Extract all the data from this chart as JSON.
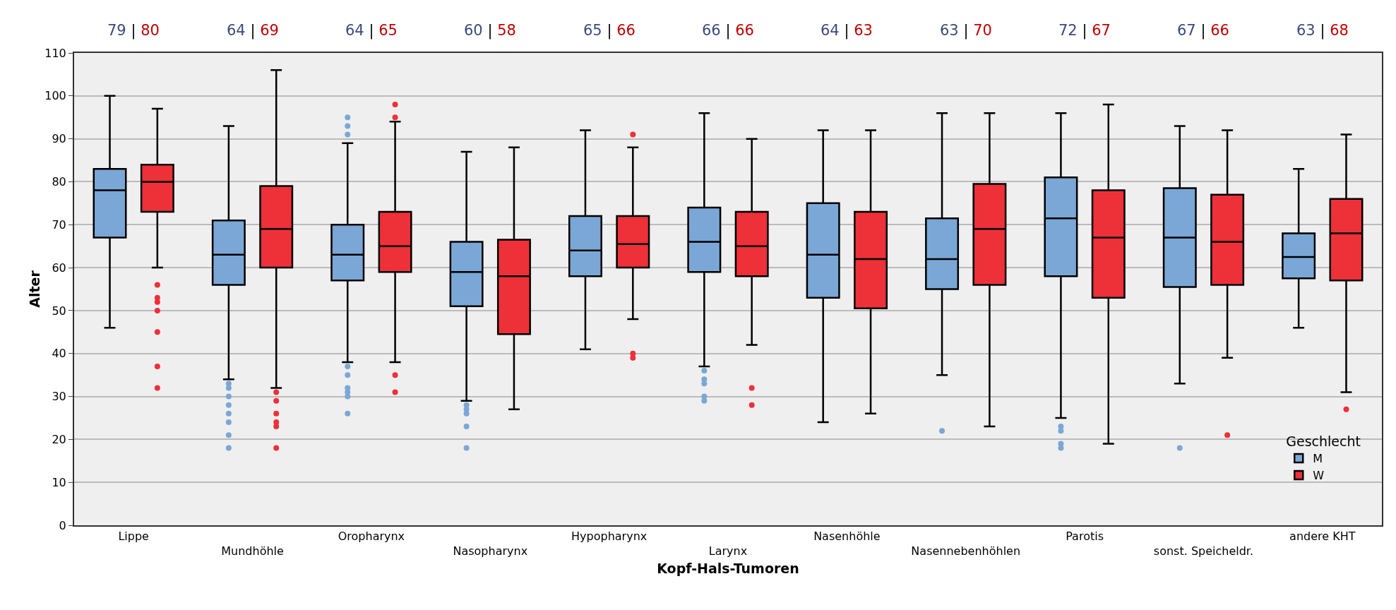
{
  "chart_data": {
    "type": "box",
    "xlabel": "Kopf-Hals-Tumoren",
    "ylabel": "Alter",
    "legend_title": "Geschlecht",
    "categories": [
      "Lippe",
      "Mundhöhle",
      "Oropharynx",
      "Nasopharynx",
      "Hypopharynx",
      "Larynx",
      "Nasenhöhle",
      "Nasennebenhöhlen",
      "Parotis",
      "sonst. Speicheldr.",
      "andere KHT"
    ],
    "annotations": [
      "79 | 80",
      "64 | 69",
      "64 | 65",
      "60 | 58",
      "65 | 66",
      "66 | 66",
      "64 | 63",
      "63 | 70",
      "72 | 67",
      "67 | 66",
      "63 | 68"
    ],
    "ylim": [
      0,
      110
    ],
    "yticks": [
      0,
      10,
      20,
      30,
      40,
      50,
      60,
      70,
      80,
      90,
      100,
      110
    ],
    "grid": "y",
    "legend": "bottom right",
    "series": [
      {
        "name": "M",
        "color": "#7aa7d6",
        "boxes": [
          {
            "low": 46,
            "q1": 67,
            "median": 78,
            "q3": 83,
            "high": 100
          },
          {
            "low": 34,
            "q1": 56,
            "median": 63,
            "q3": 71,
            "high": 93,
            "outliers": [
              33,
              32,
              30,
              28,
              26,
              24,
              21,
              18
            ]
          },
          {
            "low": 38,
            "q1": 57,
            "median": 63,
            "q3": 70,
            "high": 89,
            "outliers": [
              95,
              93,
              91,
              37,
              35,
              32,
              31,
              30,
              26
            ]
          },
          {
            "low": 29,
            "q1": 51,
            "median": 59,
            "q3": 66,
            "high": 87,
            "outliers": [
              28,
              27,
              26,
              23,
              18
            ]
          },
          {
            "low": 41,
            "q1": 58,
            "median": 64,
            "q3": 72,
            "high": 92
          },
          {
            "low": 37,
            "q1": 59,
            "median": 66,
            "q3": 74,
            "high": 96,
            "outliers": [
              36,
              34,
              33,
              30,
              29
            ]
          },
          {
            "low": 24,
            "q1": 53,
            "median": 63,
            "q3": 75,
            "high": 92
          },
          {
            "low": 35,
            "q1": 55,
            "median": 62,
            "q3": 71.5,
            "high": 96,
            "outliers": [
              22
            ]
          },
          {
            "low": 25,
            "q1": 58,
            "median": 71.5,
            "q3": 81,
            "high": 96,
            "outliers": [
              23,
              22,
              19,
              18
            ]
          },
          {
            "low": 33,
            "q1": 55.5,
            "median": 67,
            "q3": 78.5,
            "high": 93,
            "outliers": [
              18
            ]
          },
          {
            "low": 46,
            "q1": 57.5,
            "median": 62.5,
            "q3": 68,
            "high": 83
          }
        ]
      },
      {
        "name": "W",
        "color": "#ee3039",
        "boxes": [
          {
            "low": 60,
            "q1": 73,
            "median": 80,
            "q3": 84,
            "high": 97,
            "outliers": [
              56,
              53,
              52,
              50,
              45,
              37,
              32
            ]
          },
          {
            "low": 32,
            "q1": 60,
            "median": 69,
            "q3": 79,
            "high": 106,
            "outliers": [
              31,
              29,
              26,
              24,
              23,
              18
            ]
          },
          {
            "low": 38,
            "q1": 59,
            "median": 65,
            "q3": 73,
            "high": 94,
            "outliers": [
              98,
              95,
              35,
              31
            ]
          },
          {
            "low": 27,
            "q1": 44.5,
            "median": 58,
            "q3": 66.5,
            "high": 88
          },
          {
            "low": 48,
            "q1": 60,
            "median": 65.5,
            "q3": 72,
            "high": 88,
            "outliers": [
              91,
              40,
              39
            ]
          },
          {
            "low": 42,
            "q1": 58,
            "median": 65,
            "q3": 73,
            "high": 90,
            "outliers": [
              32,
              28
            ]
          },
          {
            "low": 26,
            "q1": 50.5,
            "median": 62,
            "q3": 73,
            "high": 92
          },
          {
            "low": 23,
            "q1": 56,
            "median": 69,
            "q3": 79.5,
            "high": 96
          },
          {
            "low": 19,
            "q1": 53,
            "median": 67,
            "q3": 78,
            "high": 98
          },
          {
            "low": 39,
            "q1": 56,
            "median": 66,
            "q3": 77,
            "high": 92,
            "outliers": [
              21
            ]
          },
          {
            "low": 31,
            "q1": 57,
            "median": 68,
            "q3": 76,
            "high": 91,
            "outliers": [
              27
            ]
          }
        ]
      }
    ]
  }
}
